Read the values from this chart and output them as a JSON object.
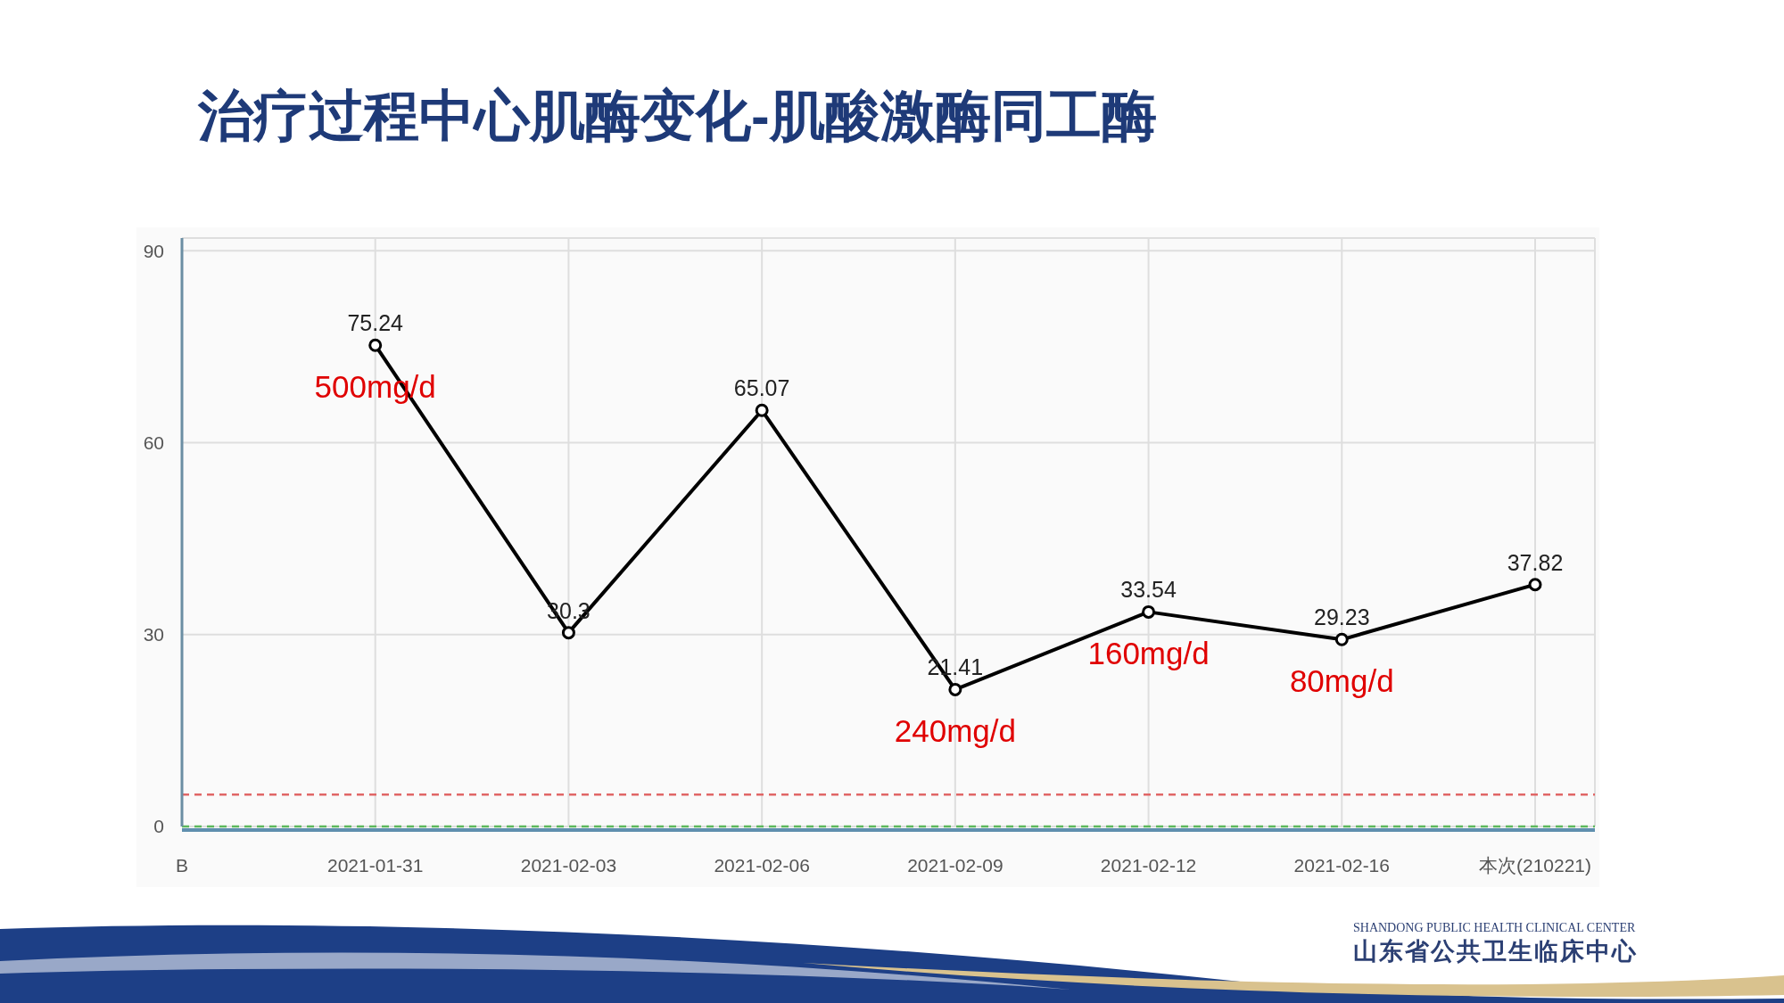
{
  "chart_data": {
    "type": "line",
    "title": "治疗过程中心肌酶变化-肌酸激酶同工酶",
    "categories": [
      "B",
      "2021-01-31",
      "2021-02-03",
      "2021-02-06",
      "2021-02-09",
      "2021-02-12",
      "2021-02-16",
      "本次(210221)"
    ],
    "series": [
      {
        "color": "#000000",
        "values": [
          null,
          75.24,
          30.3,
          65.07,
          21.41,
          33.54,
          29.23,
          37.82
        ]
      }
    ],
    "ylim": [
      0,
      92
    ],
    "yticks": [
      0,
      30,
      60,
      90
    ],
    "grid": true,
    "marker": "circle",
    "line_style": "solid",
    "data_labels": true,
    "ref_lines": [
      {
        "axis": "y",
        "value": 5,
        "color": "#e06666",
        "line_style": "dashed"
      },
      {
        "axis": "y",
        "value": 0,
        "color": "#5cb85c",
        "line_style": "dashed"
      }
    ],
    "annotations": [
      {
        "text": "500mg/d",
        "x": "2021-01-31",
        "y": 75.24
      },
      {
        "text": "240mg/d",
        "x": "2021-02-09",
        "y": 21.41
      },
      {
        "text": "160mg/d",
        "x": "2021-02-12",
        "y": 33.54
      },
      {
        "text": "80mg/d",
        "x": "2021-02-16",
        "y": 29.23
      },
      "SHANDONG PUBLIC HEALTH CLINICAL CENTER",
      "山东省公共卫生临床中心"
    ]
  }
}
